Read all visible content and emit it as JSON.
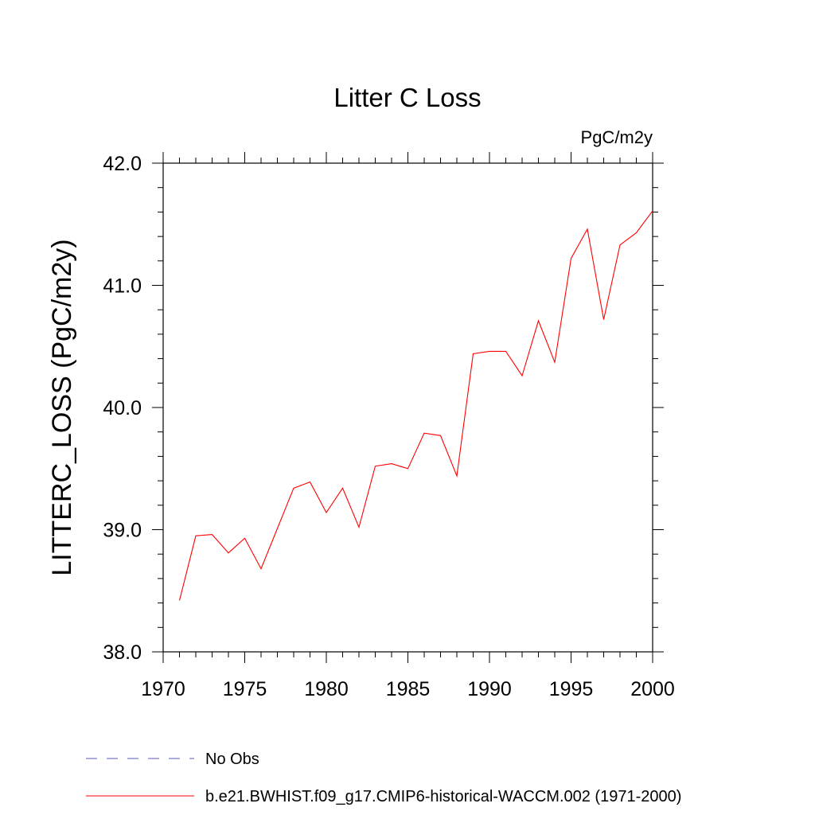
{
  "chart_data": {
    "type": "line",
    "title": "Litter C Loss",
    "units_label": "PgC/m2y",
    "xlabel": "",
    "ylabel": "LITTERC_LOSS  (PgC/m2y)",
    "xlim": [
      1970,
      2000
    ],
    "ylim": [
      38.0,
      42.0
    ],
    "x_ticks": [
      1970,
      1975,
      1980,
      1985,
      1990,
      1995,
      2000
    ],
    "x_tick_labels": [
      "1970",
      "1975",
      "1980",
      "1985",
      "1990",
      "1995",
      "2000"
    ],
    "y_ticks": [
      38.0,
      39.0,
      40.0,
      41.0,
      42.0
    ],
    "y_tick_labels": [
      "38.0",
      "39.0",
      "40.0",
      "41.0",
      "42.0"
    ],
    "grid": false,
    "legend_position": "bottom-left",
    "series": [
      {
        "name": "No Obs",
        "color": "#5a5ab4",
        "dash": "dashed",
        "x": [],
        "y": []
      },
      {
        "name": "b.e21.BWHIST.f09_g17.CMIP6-historical-WACCM.002 (1971-2000)",
        "color": "#ff0000",
        "dash": "solid",
        "x": [
          1971,
          1972,
          1973,
          1974,
          1975,
          1976,
          1977,
          1978,
          1979,
          1980,
          1981,
          1982,
          1983,
          1984,
          1985,
          1986,
          1987,
          1988,
          1989,
          1990,
          1991,
          1992,
          1993,
          1994,
          1995,
          1996,
          1997,
          1998,
          1999,
          2000
        ],
        "y": [
          38.42,
          38.95,
          38.96,
          38.81,
          38.93,
          38.68,
          39.01,
          39.34,
          39.39,
          39.14,
          39.34,
          39.02,
          39.52,
          39.54,
          39.5,
          39.79,
          39.77,
          39.44,
          40.44,
          40.46,
          40.46,
          40.26,
          40.71,
          40.37,
          41.22,
          41.46,
          40.72,
          41.33,
          41.43,
          41.61
        ]
      }
    ]
  }
}
